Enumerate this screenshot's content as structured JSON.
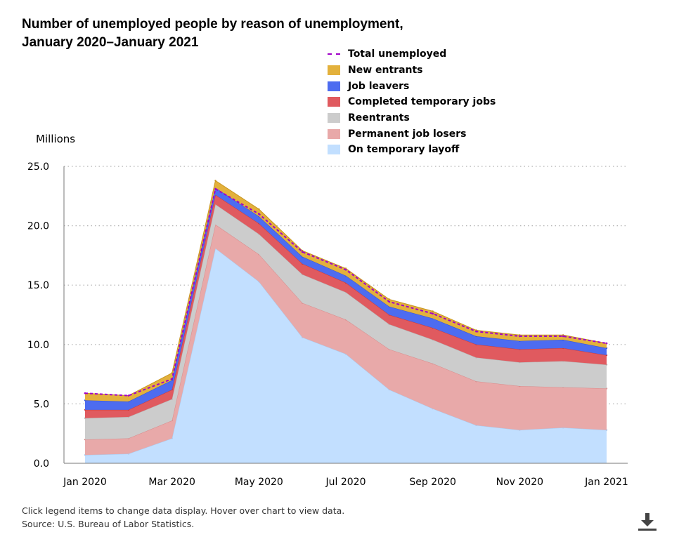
{
  "chart_data": {
    "type": "area",
    "title_line1": "Number of unemployed people by reason of unemployment,",
    "title_line2": "January 2020–January 2021",
    "ylabel": "Millions",
    "ylim": [
      0,
      25
    ],
    "yticks": [
      0,
      5,
      10,
      15,
      20,
      25
    ],
    "ytick_labels": [
      "0.0",
      "5.0",
      "10.0",
      "15.0",
      "20.0",
      "25.0"
    ],
    "x": [
      "Jan 2020",
      "Feb 2020",
      "Mar 2020",
      "Apr 2020",
      "May 2020",
      "Jun 2020",
      "Jul 2020",
      "Aug 2020",
      "Sep 2020",
      "Oct 2020",
      "Nov 2020",
      "Dec 2020",
      "Jan 2021"
    ],
    "xtick_labels": [
      "Jan 2020",
      "Mar 2020",
      "May 2020",
      "Jul 2020",
      "Sep 2020",
      "Nov 2020",
      "Jan 2021"
    ],
    "grid": "horizontal dotted",
    "legend_position": "top-right",
    "stacked": true,
    "series": [
      {
        "name": "On temporary layoff",
        "color": "#c2dfff",
        "edge": "#a9c8ee",
        "values": [
          0.7,
          0.8,
          2.1,
          18.1,
          15.3,
          10.6,
          9.2,
          6.2,
          4.6,
          3.2,
          2.8,
          3.0,
          2.8
        ]
      },
      {
        "name": "Permanent job losers",
        "color": "#e8a9a9",
        "edge": "#d98a8a",
        "values": [
          1.3,
          1.3,
          1.5,
          2.0,
          2.3,
          2.9,
          2.9,
          3.4,
          3.8,
          3.7,
          3.7,
          3.4,
          3.5
        ]
      },
      {
        "name": "Reentrants",
        "color": "#cccccc",
        "edge": "#b5b5b5",
        "values": [
          1.8,
          1.8,
          1.8,
          1.7,
          1.7,
          2.4,
          2.3,
          2.1,
          2.0,
          2.0,
          2.0,
          2.2,
          2.0
        ]
      },
      {
        "name": "Completed temporary jobs",
        "color": "#e05a5f",
        "edge": "#c23b40",
        "values": [
          0.7,
          0.6,
          0.8,
          0.8,
          0.9,
          0.9,
          0.8,
          0.8,
          1.0,
          1.1,
          1.1,
          1.1,
          0.8
        ]
      },
      {
        "name": "Job leavers",
        "color": "#4d6cf0",
        "edge": "#2f50d8",
        "values": [
          0.8,
          0.7,
          0.8,
          0.6,
          0.6,
          0.6,
          0.6,
          0.7,
          0.8,
          0.7,
          0.7,
          0.7,
          0.6
        ]
      },
      {
        "name": "New entrants",
        "color": "#e3b13c",
        "edge": "#c99620",
        "values": [
          0.6,
          0.5,
          0.6,
          0.6,
          0.6,
          0.5,
          0.6,
          0.6,
          0.6,
          0.5,
          0.5,
          0.4,
          0.4
        ]
      }
    ],
    "total": {
      "name": "Total unemployed",
      "color": "#a000c8",
      "values": [
        5.9,
        5.7,
        7.1,
        23.1,
        21.0,
        17.8,
        16.3,
        13.6,
        12.6,
        11.1,
        10.7,
        10.7,
        10.1
      ]
    }
  },
  "legend_order": [
    "Total unemployed",
    "New entrants",
    "Job leavers",
    "Completed temporary jobs",
    "Reentrants",
    "Permanent job losers",
    "On temporary layoff"
  ],
  "footer": {
    "line1": "Click legend items to change data display. Hover over chart to view data.",
    "line2": "Source: U.S. Bureau of Labor Statistics."
  },
  "download_icon": "download-icon"
}
